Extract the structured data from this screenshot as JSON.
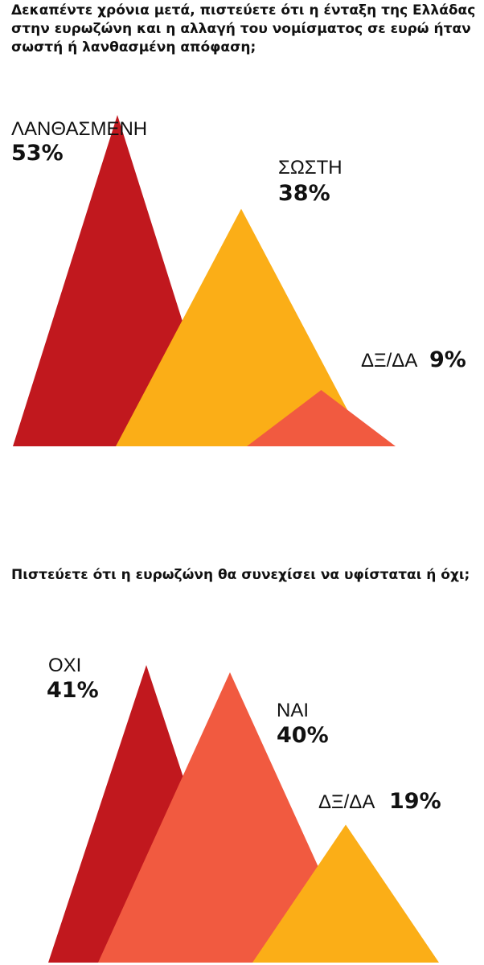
{
  "questions": {
    "q1": "Δεκαπέντε χρόνια μετά, πιστεύετε ότι η ένταξη της Ελλάδας στην ευρωζώνη και η αλλαγή του νομίσματος σε ευρώ ήταν σωστή ή λανθασμένη απόφαση;",
    "q2": "Πιστεύετε ότι η ευρωζώνη θα συνεχίσει να υφίσταται ή όχι;"
  },
  "chart_data": [
    {
      "type": "bar",
      "title": "Δεκαπέντε χρόνια μετά, πιστεύετε ότι η ένταξη της Ελλάδας στην ευρωζώνη και η αλλαγή του νομίσματος σε ευρώ ήταν σωστή ή λανθασμένη απόφαση;",
      "categories": [
        "ΛΑΝΘΑΣΜΕΝΗ",
        "ΣΩΣΤΗ",
        "ΔΞ/ΔΑ"
      ],
      "values": [
        53,
        38,
        9
      ],
      "value_labels": [
        "53%",
        "38%",
        "9%"
      ],
      "colors": [
        "#c1181e",
        "#fbae17",
        "#f15a40"
      ],
      "ylim": [
        0,
        53
      ]
    },
    {
      "type": "bar",
      "title": "Πιστεύετε ότι η ευρωζώνη θα συνεχίσει να υφίσταται ή όχι;",
      "categories": [
        "ΟΧΙ",
        "ΝΑΙ",
        "ΔΞ/ΔΑ"
      ],
      "values": [
        41,
        40,
        19
      ],
      "value_labels": [
        "41%",
        "40%",
        "19%"
      ],
      "colors": [
        "#c1181e",
        "#f15a40",
        "#fbae17"
      ],
      "ylim": [
        0,
        41
      ]
    }
  ]
}
